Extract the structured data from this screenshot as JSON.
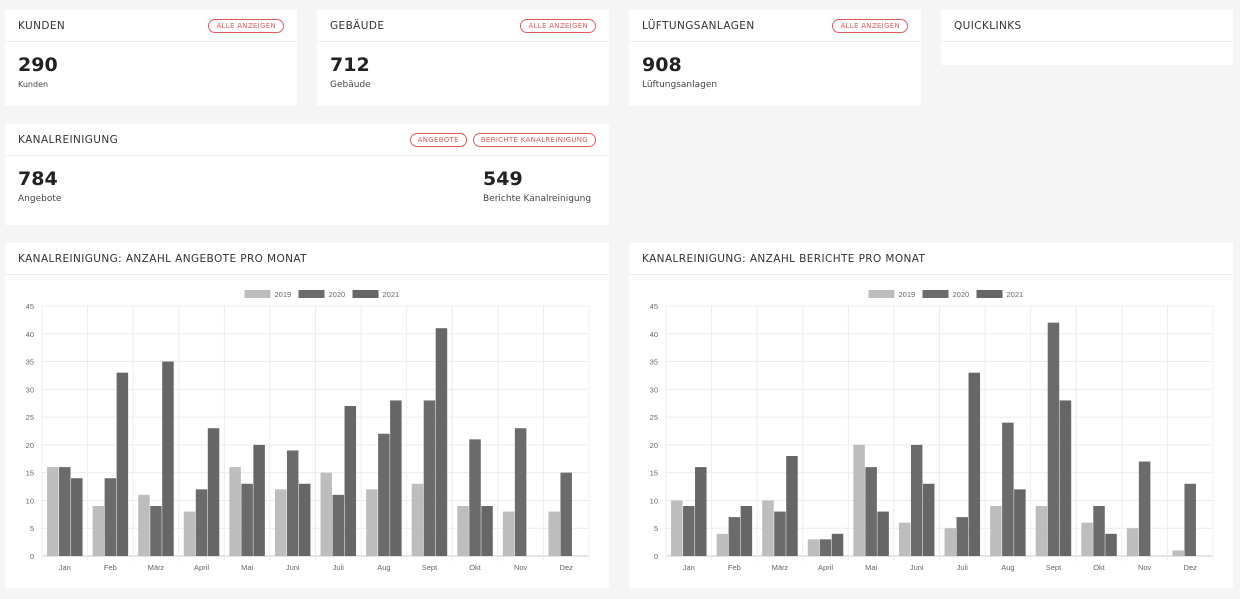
{
  "cards": {
    "kunden": {
      "title": "KUNDEN",
      "button": "ALLE ANZEIGEN",
      "value": "290",
      "label": "Kunden"
    },
    "gebaeude": {
      "title": "GEBÄUDE",
      "button": "ALLE ANZEIGEN",
      "value": "712",
      "label": "Gebäude"
    },
    "lueftung": {
      "title": "LÜFTUNGSANLAGEN",
      "button": "ALLE ANZEIGEN",
      "value": "908",
      "label": "Lüftungsanlagen"
    },
    "quicklinks": {
      "title": "QUICKLINKS"
    },
    "kanal": {
      "title": "KANALREINIGUNG",
      "button_angebote": "ANGEBOTE",
      "button_berichte": "BERICHTE KANALREINIGUNG",
      "angebote_value": "784",
      "angebote_label": "Angebote",
      "berichte_value": "549",
      "berichte_label": "Berichte Kanalreinigung"
    }
  },
  "colors": {
    "accent": "#e05a5a",
    "s2019": "#bdbdbd",
    "s2020": "#6b6b6b",
    "s2021": "#666666"
  },
  "chart_data": [
    {
      "type": "bar",
      "title": "KANALREINIGUNG: ANZAHL ANGEBOTE PRO MONAT",
      "categories": [
        "Jan",
        "Feb",
        "März",
        "April",
        "Mai",
        "Juni",
        "Juli",
        "Aug",
        "Sept",
        "Okt",
        "Nov",
        "Dez"
      ],
      "ylim": [
        0,
        45
      ],
      "yticks": [
        0,
        5,
        10,
        15,
        20,
        25,
        30,
        35,
        40,
        45
      ],
      "legend": "top",
      "grid": true,
      "series": [
        {
          "name": "2019",
          "values": [
            16,
            9,
            11,
            8,
            16,
            12,
            15,
            12,
            13,
            9,
            8,
            8
          ]
        },
        {
          "name": "2020",
          "values": [
            16,
            14,
            9,
            12,
            13,
            19,
            11,
            22,
            28,
            21,
            23,
            15
          ]
        },
        {
          "name": "2021",
          "values": [
            14,
            33,
            35,
            23,
            20,
            13,
            27,
            28,
            41,
            9,
            0,
            0
          ]
        }
      ]
    },
    {
      "type": "bar",
      "title": "KANALREINIGUNG: ANZAHL BERICHTE PRO MONAT",
      "categories": [
        "Jan",
        "Feb",
        "März",
        "April",
        "Mai",
        "Juni",
        "Juli",
        "Aug",
        "Sept",
        "Okt",
        "Nov",
        "Dez"
      ],
      "ylim": [
        0,
        45
      ],
      "yticks": [
        0,
        5,
        10,
        15,
        20,
        25,
        30,
        35,
        40,
        45
      ],
      "legend": "top",
      "grid": true,
      "series": [
        {
          "name": "2019",
          "values": [
            10,
            4,
            10,
            3,
            20,
            6,
            5,
            9,
            9,
            6,
            5,
            1
          ]
        },
        {
          "name": "2020",
          "values": [
            9,
            7,
            8,
            3,
            16,
            20,
            7,
            24,
            42,
            9,
            17,
            13
          ]
        },
        {
          "name": "2021",
          "values": [
            16,
            9,
            18,
            4,
            8,
            13,
            33,
            12,
            28,
            4,
            0,
            0
          ]
        }
      ]
    }
  ]
}
